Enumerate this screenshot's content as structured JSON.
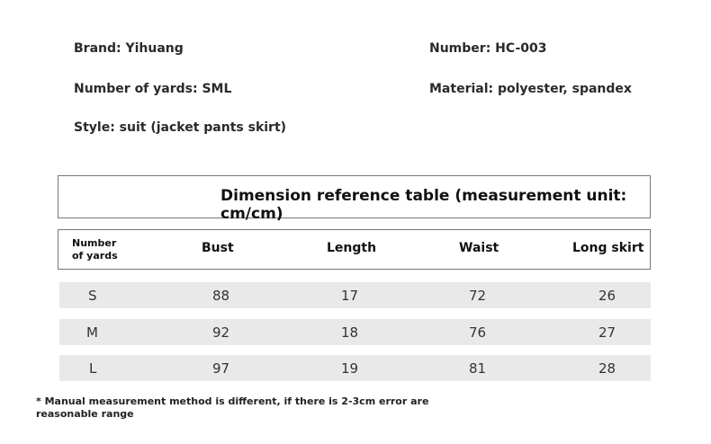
{
  "info": {
    "brand": "Brand: Yihuang",
    "number": "Number: HC-003",
    "yards": "Number of yards: SML",
    "material": "Material: polyester, spandex",
    "style": "Style: suit (jacket pants skirt)"
  },
  "table": {
    "title": "Dimension reference table (measurement unit: cm/cm)",
    "headers": {
      "size_line1": "Number",
      "size_line2": "of yards",
      "bust": "Bust",
      "length": "Length",
      "waist": "Waist",
      "long_skirt": "Long skirt"
    },
    "rows": [
      {
        "size": "S",
        "bust": "88",
        "length": "17",
        "waist": "72",
        "long_skirt": "26"
      },
      {
        "size": "M",
        "bust": "92",
        "length": "18",
        "waist": "76",
        "long_skirt": "27"
      },
      {
        "size": "L",
        "bust": "97",
        "length": "19",
        "waist": "81",
        "long_skirt": "28"
      }
    ]
  },
  "note": "* Manual measurement method is different, if there is 2-3cm error are reasonable range"
}
